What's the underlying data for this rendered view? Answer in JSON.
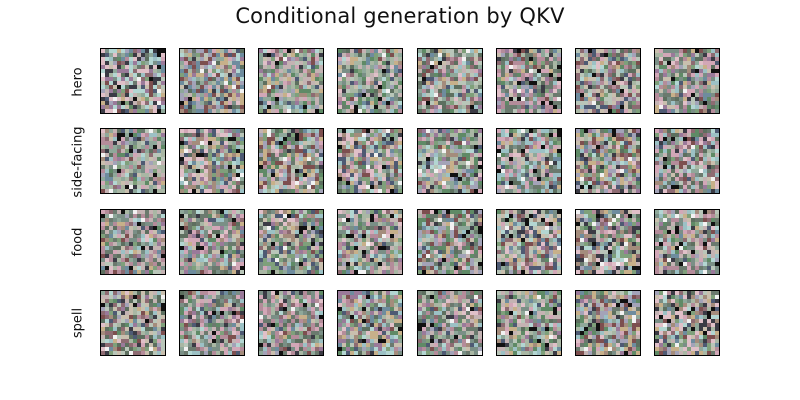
{
  "title": "Conditional generation by QKV",
  "rows": [
    {
      "label": "hero"
    },
    {
      "label": "side-facing"
    },
    {
      "label": "food"
    },
    {
      "label": "spell"
    }
  ],
  "samples_per_row": 8,
  "tile_grid": 16,
  "palette": [
    "#8fa89a",
    "#a9b7a4",
    "#c4b3b3",
    "#b48c9a",
    "#7a8f86",
    "#6b7a6e",
    "#d2a7b7",
    "#9cc1c5",
    "#5d6f5f",
    "#8d6b72",
    "#b9c6b9",
    "#c9bfae",
    "#4e5a73",
    "#7fa07b",
    "#a48c7c",
    "#e0c0c8",
    "#3b3b45",
    "#b3d6d2",
    "#9a7a9a",
    "#6e8c9e",
    "#c7b08a",
    "#7d4f4f",
    "#a3a3b8",
    "#5f8a66"
  ]
}
